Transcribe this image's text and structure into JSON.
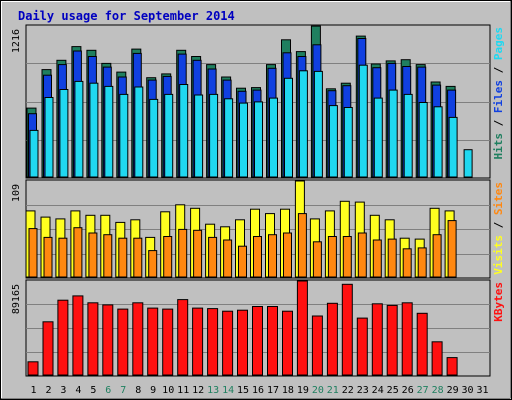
{
  "chart_data": {
    "type": "bar",
    "title": "Daily usage for September 2014",
    "days": [
      "1",
      "2",
      "3",
      "4",
      "5",
      "6",
      "7",
      "8",
      "9",
      "10",
      "11",
      "12",
      "13",
      "14",
      "15",
      "16",
      "17",
      "18",
      "19",
      "20",
      "21",
      "22",
      "23",
      "24",
      "25",
      "26",
      "27",
      "28",
      "29",
      "30",
      "31"
    ],
    "weekend_days": [
      "6",
      "7",
      "13",
      "14",
      "20",
      "21",
      "27",
      "28"
    ],
    "colors": {
      "hits": "#1f7f5f",
      "files": "#1040e0",
      "pages": "#20d8f0",
      "visits": "#ffff20",
      "sites": "#ff8810",
      "kbytes": "#ff1010",
      "title": "#0000c0",
      "weekend_label": "#208060",
      "weekday_label": "#000000",
      "plot_bg": "#c0c0c0"
    },
    "panels": [
      {
        "id": "hits-files-pages",
        "ymax_label": "1216",
        "ymax": 1216,
        "legend": [
          {
            "text": "Hits",
            "color": "#1f7f5f"
          },
          {
            "text": "Files",
            "color": "#1040e0"
          },
          {
            "text": "Pages",
            "color": "#20d8f0"
          }
        ],
        "series": [
          {
            "name": "Hits",
            "color": "#1f7f5f",
            "values": [
              555,
              865,
              940,
              1050,
              1020,
              915,
              845,
              1030,
              800,
              830,
              1020,
              970,
              905,
              805,
              715,
              720,
              905,
              1105,
              1010,
              1215,
              710,
              755,
              1135,
              910,
              935,
              945,
              905,
              765,
              730,
              null,
              null
            ]
          },
          {
            "name": "Files",
            "color": "#1040e0",
            "values": [
              510,
              820,
              905,
              1015,
              970,
              885,
              805,
              995,
              780,
              810,
              990,
              940,
              870,
              780,
              690,
              700,
              875,
              1000,
              970,
              1065,
              695,
              735,
              1115,
              880,
              915,
              890,
              885,
              740,
              700,
              null,
              null
            ]
          },
          {
            "name": "Pages",
            "color": "#20d8f0",
            "values": [
              375,
              640,
              705,
              770,
              755,
              730,
              665,
              725,
              625,
              665,
              745,
              660,
              665,
              630,
              595,
              605,
              635,
              795,
              855,
              850,
              575,
              560,
              900,
              635,
              700,
              665,
              600,
              565,
              480,
              220,
              null
            ]
          }
        ]
      },
      {
        "id": "visits-sites",
        "ymax_label": "109",
        "ymax": 109,
        "legend": [
          {
            "text": "Visits",
            "color": "#ffff20"
          },
          {
            "text": "Sites",
            "color": "#ff8810"
          }
        ],
        "series": [
          {
            "name": "Visits",
            "color": "#ffff20",
            "values": [
              75,
              68,
              66,
              75,
              70,
              70,
              62,
              65,
              45,
              74,
              82,
              78,
              60,
              57,
              65,
              77,
              72,
              77,
              109,
              66,
              75,
              86,
              85,
              70,
              65,
              44,
              43,
              78,
              75,
              null,
              null
            ]
          },
          {
            "name": "Sites",
            "color": "#ff8810",
            "values": [
              55,
              45,
              44,
              56,
              50,
              48,
              44,
              44,
              30,
              46,
              54,
              53,
              45,
              42,
              35,
              46,
              48,
              50,
              72,
              40,
              46,
              46,
              50,
              42,
              43,
              32,
              33,
              48,
              64,
              null,
              null
            ]
          }
        ]
      },
      {
        "id": "kbytes",
        "ymax_label": "89165",
        "ymax": 89165,
        "legend": [
          {
            "text": "KBytes",
            "color": "#ff1010"
          }
        ],
        "series": [
          {
            "name": "KBytes",
            "color": "#ff1010",
            "values": [
              12500,
              50500,
              71000,
              75000,
              68500,
              66500,
              62500,
              68500,
              63500,
              62500,
              71500,
              63500,
              63000,
              60500,
              61500,
              65000,
              65000,
              60500,
              89165,
              56000,
              68000,
              86000,
              54000,
              67500,
              66000,
              68500,
              58500,
              31500,
              16500,
              null,
              null
            ]
          }
        ]
      }
    ]
  }
}
